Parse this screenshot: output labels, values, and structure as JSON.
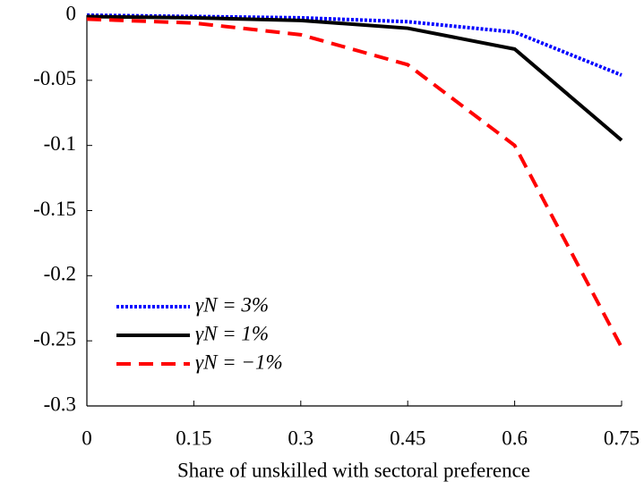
{
  "chart_data": {
    "type": "line",
    "x_label": "Share of unskilled with sectoral preference",
    "x": [
      0,
      0.15,
      0.3,
      0.45,
      0.6,
      0.75
    ],
    "series": [
      {
        "name": "γN = 3%",
        "color": "#0000ff",
        "style": "dotted",
        "values": [
          0,
          -0.001,
          -0.002,
          -0.005,
          -0.013,
          -0.046
        ]
      },
      {
        "name": "γN = 1%",
        "color": "#000000",
        "style": "solid",
        "values": [
          -0.001,
          -0.002,
          -0.004,
          -0.01,
          -0.026,
          -0.096
        ]
      },
      {
        "name": "γN = −1%",
        "color": "#ff0000",
        "style": "dashed",
        "values": [
          -0.003,
          -0.006,
          -0.015,
          -0.038,
          -0.1,
          -0.255
        ]
      }
    ],
    "xlim": [
      0,
      0.75
    ],
    "xticks": [
      0,
      0.15,
      0.3,
      0.45,
      0.6,
      0.75
    ],
    "ylim": [
      -0.3,
      0
    ],
    "yticks": [
      0,
      -0.05,
      -0.1,
      -0.15,
      -0.2,
      -0.25,
      -0.3
    ],
    "legend": "lower left"
  }
}
